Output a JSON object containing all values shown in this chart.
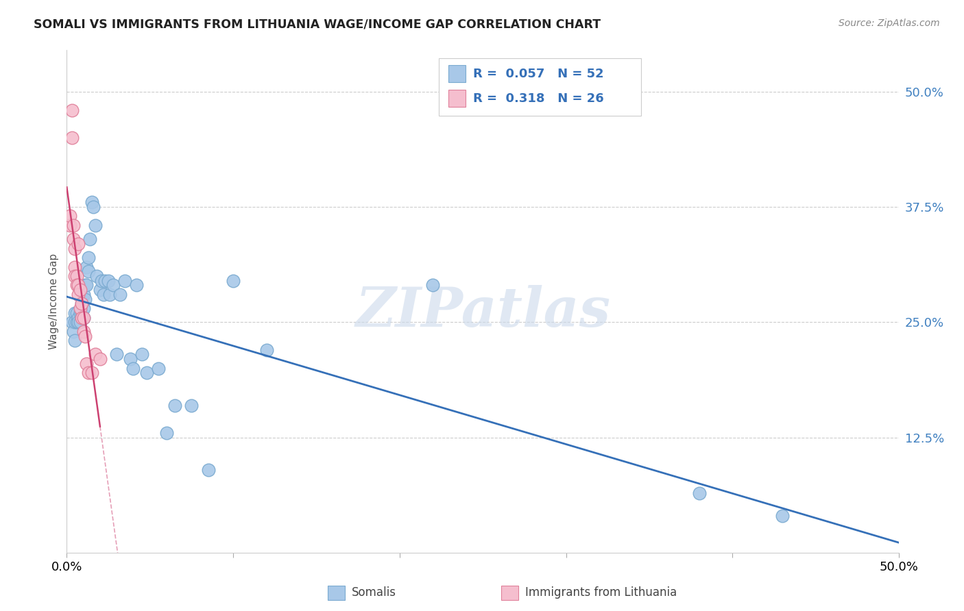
{
  "title": "SOMALI VS IMMIGRANTS FROM LITHUANIA WAGE/INCOME GAP CORRELATION CHART",
  "source": "Source: ZipAtlas.com",
  "ylabel": "Wage/Income Gap",
  "ytick_labels": [
    "12.5%",
    "25.0%",
    "37.5%",
    "50.0%"
  ],
  "ytick_values": [
    0.125,
    0.25,
    0.375,
    0.5
  ],
  "xlim": [
    0.0,
    0.5
  ],
  "ylim": [
    0.0,
    0.545
  ],
  "legend1_label": "R =  0.057   N = 52",
  "legend2_label": "R =  0.318   N = 26",
  "legend_bottom1": "Somalis",
  "legend_bottom2": "Immigrants from Lithuania",
  "somali_color": "#a8c8e8",
  "somali_edge": "#7aaad0",
  "lithuania_color": "#f5bece",
  "lithuania_edge": "#e0809a",
  "trendline_somali_color": "#3570b8",
  "trendline_lithuania_color": "#cc4070",
  "watermark": "ZIPatlas",
  "somali_x": [
    0.003,
    0.004,
    0.005,
    0.005,
    0.005,
    0.006,
    0.006,
    0.007,
    0.007,
    0.008,
    0.008,
    0.009,
    0.009,
    0.01,
    0.01,
    0.01,
    0.011,
    0.011,
    0.012,
    0.012,
    0.013,
    0.013,
    0.014,
    0.015,
    0.016,
    0.017,
    0.018,
    0.02,
    0.021,
    0.022,
    0.023,
    0.025,
    0.026,
    0.028,
    0.03,
    0.032,
    0.035,
    0.038,
    0.04,
    0.042,
    0.045,
    0.048,
    0.055,
    0.06,
    0.065,
    0.075,
    0.085,
    0.1,
    0.12,
    0.22,
    0.38,
    0.43
  ],
  "somali_y": [
    0.25,
    0.24,
    0.26,
    0.25,
    0.23,
    0.26,
    0.25,
    0.255,
    0.25,
    0.26,
    0.25,
    0.27,
    0.26,
    0.28,
    0.265,
    0.255,
    0.29,
    0.275,
    0.31,
    0.29,
    0.32,
    0.305,
    0.34,
    0.38,
    0.375,
    0.355,
    0.3,
    0.285,
    0.295,
    0.28,
    0.295,
    0.295,
    0.28,
    0.29,
    0.215,
    0.28,
    0.295,
    0.21,
    0.2,
    0.29,
    0.215,
    0.195,
    0.2,
    0.13,
    0.16,
    0.16,
    0.09,
    0.295,
    0.22,
    0.29,
    0.065,
    0.04
  ],
  "lithuania_x": [
    0.002,
    0.002,
    0.003,
    0.003,
    0.004,
    0.004,
    0.005,
    0.005,
    0.005,
    0.006,
    0.006,
    0.007,
    0.007,
    0.007,
    0.008,
    0.008,
    0.009,
    0.009,
    0.01,
    0.01,
    0.011,
    0.012,
    0.013,
    0.015,
    0.017,
    0.02
  ],
  "lithuania_y": [
    0.355,
    0.365,
    0.45,
    0.48,
    0.34,
    0.355,
    0.33,
    0.31,
    0.3,
    0.3,
    0.29,
    0.335,
    0.29,
    0.28,
    0.285,
    0.265,
    0.27,
    0.255,
    0.255,
    0.24,
    0.235,
    0.205,
    0.195,
    0.195,
    0.215,
    0.21
  ]
}
